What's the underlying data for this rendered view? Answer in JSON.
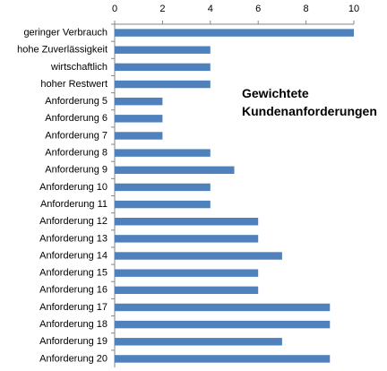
{
  "chart_data": {
    "type": "bar",
    "orientation": "horizontal",
    "title": "Gewichtete Kundenanforderungen",
    "categories": [
      "geringer Verbrauch",
      "hohe Zuverlässigkeit",
      "wirtschaftlich",
      "hoher Restwert",
      "Anforderung 5",
      "Anforderung 6",
      "Anforderung 7",
      "Anforderung 8",
      "Anforderung 9",
      "Anforderung 10",
      "Anforderung 11",
      "Anforderung 12",
      "Anforderung 13",
      "Anforderung 14",
      "Anforderung 15",
      "Anforderung 16",
      "Anforderung 17",
      "Anforderung 18",
      "Anforderung 19",
      "Anforderung 20"
    ],
    "values": [
      10,
      4,
      4,
      4,
      2,
      2,
      2,
      4,
      5,
      4,
      4,
      6,
      6,
      7,
      6,
      6,
      9,
      9,
      7,
      9
    ],
    "color": "#4f81bd",
    "xlim": [
      0,
      10
    ],
    "xticks": [
      0,
      2,
      4,
      6,
      8,
      10
    ],
    "grid": false
  }
}
